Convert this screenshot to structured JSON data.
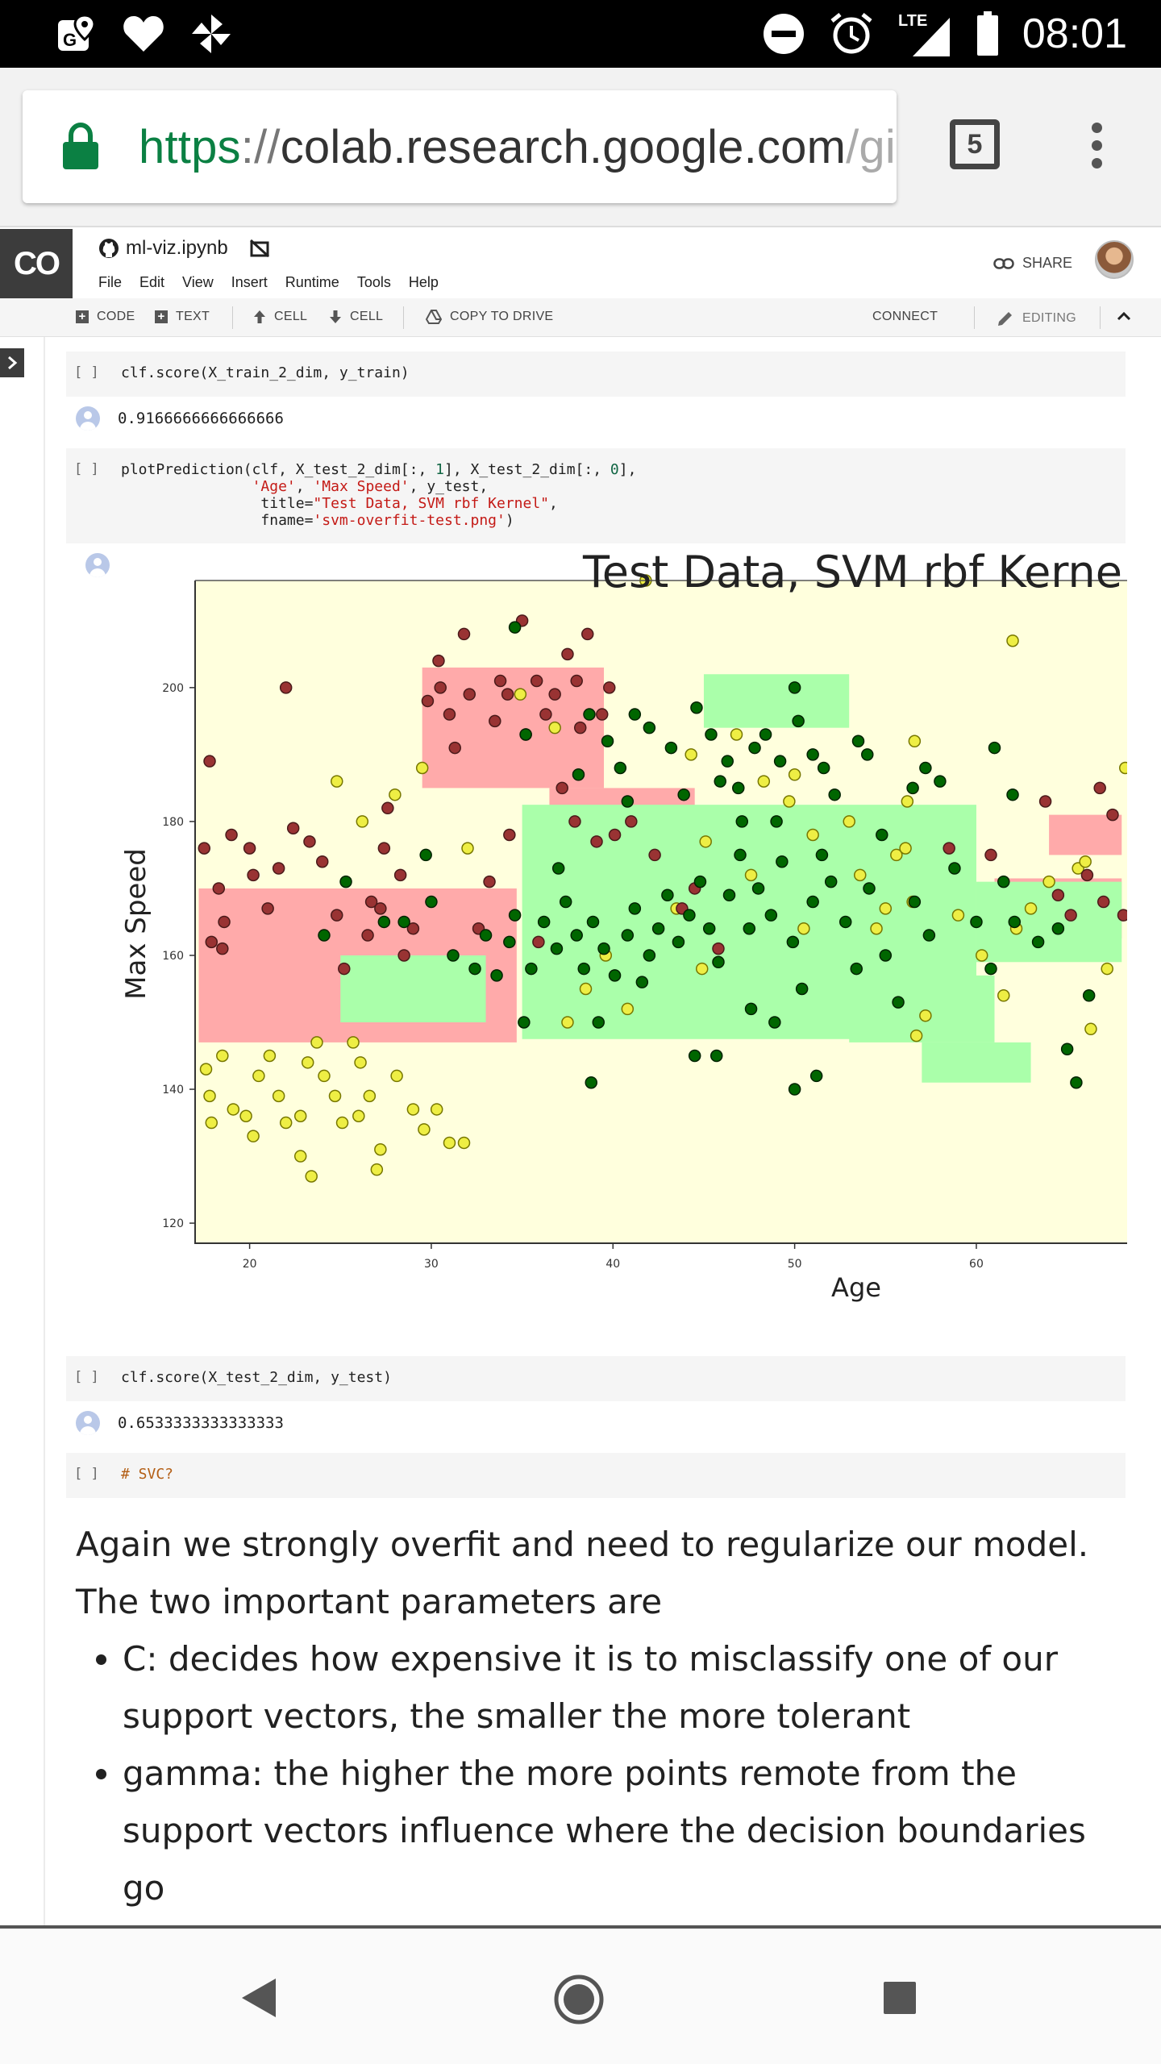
{
  "status_bar": {
    "time": "08:01",
    "network_label": "LTE",
    "left_icons": [
      "maps-notification-icon",
      "heart-icon",
      "pinwheel-icon"
    ],
    "right_icons": [
      "do-not-disturb-icon",
      "alarm-icon",
      "signal-icon",
      "battery-icon"
    ]
  },
  "browser": {
    "url_scheme": "https",
    "url_separator": "://",
    "url_host": "colab.research.google.com",
    "url_path": "/gi",
    "tab_count": "5"
  },
  "colab": {
    "logo": "CO",
    "notebook_name": "ml-viz.ipynb",
    "menu": [
      "File",
      "Edit",
      "View",
      "Insert",
      "Runtime",
      "Tools",
      "Help"
    ],
    "share_label": "SHARE",
    "toolbar": {
      "code": "CODE",
      "text": "TEXT",
      "cell_up": "CELL",
      "cell_down": "CELL",
      "copy_to_drive": "COPY TO DRIVE",
      "connect": "CONNECT",
      "editing": "EDITING"
    }
  },
  "cells": {
    "bracket": "[ ]",
    "cell1_code": "clf.score(X_train_2_dim, y_train)",
    "cell1_output": "0.9166666666666666",
    "cell2_line1_a": "plotPrediction(clf, X_test_2_dim[:, ",
    "cell2_line1_n1": "1",
    "cell2_line1_b": "], X_test_2_dim[:, ",
    "cell2_line1_n2": "0",
    "cell2_line1_c": "],",
    "cell2_indent": "               ",
    "cell2_line2_s1": "'Age'",
    "cell2_line2_sep": ", ",
    "cell2_line2_s2": "'Max Speed'",
    "cell2_line2_rest": ", y_test,",
    "cell2_line3_indent": "                ",
    "cell2_line3_kw": "title=",
    "cell2_line3_s": "\"Test Data, SVM rbf Kernel\"",
    "cell2_line3_end": ",",
    "cell2_line4_kw": "fname=",
    "cell2_line4_s": "'svm-overfit-test.png'",
    "cell2_line4_end": ")",
    "cell3_code": "clf.score(X_test_2_dim, y_test)",
    "cell3_output": "0.6533333333333333",
    "cell4_code": "# SVC?"
  },
  "chart_data": {
    "type": "scatter",
    "title": "Test Data, SVM rbf Kerne",
    "xlabel": "Age",
    "ylabel": "Max Speed",
    "xlim": [
      17,
      68.3
    ],
    "ylim": [
      117,
      216
    ],
    "xticks": [
      20,
      30,
      40,
      50,
      60
    ],
    "yticks": [
      120,
      140,
      160,
      180,
      200
    ],
    "colors": {
      "background": "#ffffdd",
      "region_red": "#ffaaaa",
      "region_green": "#aaffaa",
      "class_red": "#993333",
      "class_yellow": "#eeee44",
      "class_green": "#006600"
    },
    "regions_red": [
      [
        17.2,
        158.5,
        17.5,
        23
      ],
      [
        29.5,
        194,
        10,
        18
      ],
      [
        36.5,
        178,
        8,
        14
      ],
      [
        43,
        172,
        4,
        6
      ],
      [
        61,
        167,
        7,
        9
      ],
      [
        64,
        178,
        4,
        6
      ]
    ],
    "regions_green": [
      [
        35,
        165,
        25,
        35
      ],
      [
        25,
        155,
        8,
        10
      ],
      [
        45,
        198,
        8,
        8
      ],
      [
        53,
        152,
        8,
        10
      ],
      [
        57,
        144,
        6,
        6
      ],
      [
        60,
        165,
        8,
        12
      ]
    ],
    "points_red": [
      [
        17.8,
        189
      ],
      [
        17.5,
        176
      ],
      [
        18.3,
        170
      ],
      [
        18.6,
        165
      ],
      [
        17.9,
        162
      ],
      [
        18.5,
        161
      ],
      [
        19.0,
        178
      ],
      [
        20.2,
        172
      ],
      [
        21.0,
        167
      ],
      [
        21.6,
        173
      ],
      [
        22.0,
        200
      ],
      [
        22.4,
        179
      ],
      [
        23.3,
        177
      ],
      [
        24.0,
        174
      ],
      [
        24.8,
        166
      ],
      [
        25.2,
        158
      ],
      [
        26.5,
        163
      ],
      [
        26.7,
        168
      ],
      [
        27.6,
        182
      ],
      [
        27.4,
        176
      ],
      [
        28.5,
        160
      ],
      [
        29.0,
        164
      ],
      [
        29.8,
        198
      ],
      [
        30.5,
        200
      ],
      [
        30.4,
        204
      ],
      [
        31.0,
        196
      ],
      [
        31.3,
        191
      ],
      [
        32.1,
        199
      ],
      [
        33.5,
        195
      ],
      [
        33.8,
        201
      ],
      [
        34.2,
        199
      ],
      [
        35.2,
        193
      ],
      [
        35.8,
        201
      ],
      [
        36.3,
        196
      ],
      [
        36.8,
        199
      ],
      [
        37.5,
        205
      ],
      [
        38.0,
        201
      ],
      [
        38.2,
        194
      ],
      [
        38.6,
        208
      ],
      [
        39.4,
        196
      ],
      [
        39.8,
        200
      ],
      [
        31.8,
        208
      ],
      [
        35.0,
        210
      ],
      [
        37.2,
        185
      ],
      [
        37.9,
        180
      ],
      [
        39.1,
        177
      ],
      [
        40.1,
        178
      ],
      [
        41.0,
        180
      ],
      [
        42.3,
        175
      ],
      [
        43.8,
        167
      ],
      [
        44.5,
        170
      ],
      [
        45.8,
        161
      ],
      [
        34.3,
        178
      ],
      [
        33.2,
        171
      ],
      [
        32.6,
        164
      ],
      [
        35.9,
        162
      ],
      [
        64.5,
        169
      ],
      [
        65.2,
        166
      ],
      [
        66.1,
        172
      ],
      [
        67.0,
        168
      ],
      [
        68.1,
        166
      ],
      [
        66.8,
        185
      ],
      [
        67.5,
        181
      ],
      [
        60.8,
        175
      ],
      [
        58.5,
        176
      ],
      [
        63.8,
        183
      ],
      [
        27.2,
        167
      ],
      [
        28.3,
        172
      ],
      [
        20.0,
        176
      ]
    ],
    "points_yellow": [
      [
        17.6,
        143
      ],
      [
        17.8,
        139
      ],
      [
        17.9,
        135
      ],
      [
        18.5,
        145
      ],
      [
        19.1,
        137
      ],
      [
        19.8,
        136
      ],
      [
        20.5,
        142
      ],
      [
        20.2,
        133
      ],
      [
        21.1,
        145
      ],
      [
        21.6,
        139
      ],
      [
        22.0,
        135
      ],
      [
        22.8,
        136
      ],
      [
        23.2,
        144
      ],
      [
        23.7,
        147
      ],
      [
        24.1,
        142
      ],
      [
        24.7,
        139
      ],
      [
        25.1,
        135
      ],
      [
        25.7,
        147
      ],
      [
        26.1,
        144
      ],
      [
        26.6,
        139
      ],
      [
        26.0,
        136
      ],
      [
        27.2,
        131
      ],
      [
        27.0,
        128
      ],
      [
        28.1,
        142
      ],
      [
        29.0,
        137
      ],
      [
        29.6,
        134
      ],
      [
        30.3,
        137
      ],
      [
        31.0,
        132
      ],
      [
        31.8,
        132
      ],
      [
        22.8,
        130
      ],
      [
        23.4,
        127
      ],
      [
        24.8,
        186
      ],
      [
        26.2,
        180
      ],
      [
        28.0,
        184
      ],
      [
        29.5,
        188
      ],
      [
        32.0,
        176
      ],
      [
        37.5,
        150
      ],
      [
        40.8,
        152
      ],
      [
        38.5,
        155
      ],
      [
        39.6,
        160
      ],
      [
        43.5,
        167
      ],
      [
        44.9,
        158
      ],
      [
        46.8,
        193
      ],
      [
        48.3,
        186
      ],
      [
        49.7,
        183
      ],
      [
        50.0,
        187
      ],
      [
        51.0,
        178
      ],
      [
        53.0,
        180
      ],
      [
        53.6,
        172
      ],
      [
        54.5,
        164
      ],
      [
        55.0,
        167
      ],
      [
        55.6,
        175
      ],
      [
        56.2,
        183
      ],
      [
        56.6,
        192
      ],
      [
        56.1,
        176
      ],
      [
        56.5,
        168
      ],
      [
        57.2,
        151
      ],
      [
        56.7,
        148
      ],
      [
        59.0,
        166
      ],
      [
        60.3,
        160
      ],
      [
        61.5,
        154
      ],
      [
        62.2,
        164
      ],
      [
        63.0,
        167
      ],
      [
        64.0,
        171
      ],
      [
        65.6,
        173
      ],
      [
        66.3,
        149
      ],
      [
        67.2,
        158
      ],
      [
        68.2,
        188
      ],
      [
        62.0,
        207
      ],
      [
        66.0,
        174
      ],
      [
        41.8,
        216
      ],
      [
        34.9,
        199
      ],
      [
        36.8,
        194
      ],
      [
        44.3,
        190
      ],
      [
        45.1,
        177
      ],
      [
        47.6,
        172
      ],
      [
        50.5,
        164
      ]
    ],
    "points_green": [
      [
        34.6,
        209
      ],
      [
        35.2,
        193
      ],
      [
        38.1,
        187
      ],
      [
        38.7,
        196
      ],
      [
        39.7,
        192
      ],
      [
        40.4,
        188
      ],
      [
        40.8,
        183
      ],
      [
        41.2,
        196
      ],
      [
        42.0,
        194
      ],
      [
        43.2,
        191
      ],
      [
        43.9,
        184
      ],
      [
        44.6,
        197
      ],
      [
        45.4,
        193
      ],
      [
        45.9,
        186
      ],
      [
        46.3,
        189
      ],
      [
        46.9,
        185
      ],
      [
        47.1,
        180
      ],
      [
        47.8,
        191
      ],
      [
        48.4,
        193
      ],
      [
        49.0,
        180
      ],
      [
        49.2,
        189
      ],
      [
        50.0,
        200
      ],
      [
        50.2,
        195
      ],
      [
        51.0,
        190
      ],
      [
        51.6,
        188
      ],
      [
        52.2,
        184
      ],
      [
        53.5,
        192
      ],
      [
        54.0,
        190
      ],
      [
        54.8,
        178
      ],
      [
        56.5,
        185
      ],
      [
        57.2,
        188
      ],
      [
        58.0,
        186
      ],
      [
        61.0,
        191
      ],
      [
        62.0,
        184
      ],
      [
        61.5,
        171
      ],
      [
        28.5,
        165
      ],
      [
        30.0,
        168
      ],
      [
        31.2,
        160
      ],
      [
        32.4,
        158
      ],
      [
        33.0,
        163
      ],
      [
        33.6,
        157
      ],
      [
        34.3,
        162
      ],
      [
        34.6,
        166
      ],
      [
        35.1,
        150
      ],
      [
        35.5,
        158
      ],
      [
        36.2,
        165
      ],
      [
        36.9,
        161
      ],
      [
        37.4,
        168
      ],
      [
        38.0,
        163
      ],
      [
        38.4,
        158
      ],
      [
        38.9,
        165
      ],
      [
        39.5,
        161
      ],
      [
        40.1,
        157
      ],
      [
        40.8,
        163
      ],
      [
        41.2,
        167
      ],
      [
        41.6,
        156
      ],
      [
        42.0,
        160
      ],
      [
        42.5,
        164
      ],
      [
        43.0,
        169
      ],
      [
        43.6,
        162
      ],
      [
        44.2,
        166
      ],
      [
        44.8,
        171
      ],
      [
        45.3,
        164
      ],
      [
        45.8,
        159
      ],
      [
        46.4,
        169
      ],
      [
        47.0,
        175
      ],
      [
        47.5,
        164
      ],
      [
        48.0,
        170
      ],
      [
        48.7,
        166
      ],
      [
        49.3,
        174
      ],
      [
        49.9,
        162
      ],
      [
        50.4,
        155
      ],
      [
        51.0,
        168
      ],
      [
        51.5,
        175
      ],
      [
        52.0,
        171
      ],
      [
        52.8,
        165
      ],
      [
        53.4,
        158
      ],
      [
        54.1,
        170
      ],
      [
        55.0,
        160
      ],
      [
        55.7,
        153
      ],
      [
        56.6,
        168
      ],
      [
        57.4,
        163
      ],
      [
        58.8,
        173
      ],
      [
        60.0,
        165
      ],
      [
        60.8,
        158
      ],
      [
        62.1,
        165
      ],
      [
        63.4,
        162
      ],
      [
        64.5,
        164
      ],
      [
        65.0,
        146
      ],
      [
        66.2,
        154
      ],
      [
        65.5,
        141
      ],
      [
        44.5,
        145
      ],
      [
        45.7,
        145
      ],
      [
        47.6,
        152
      ],
      [
        48.9,
        150
      ],
      [
        50.0,
        140
      ],
      [
        51.2,
        142
      ],
      [
        38.8,
        141
      ],
      [
        39.2,
        150
      ],
      [
        29.7,
        175
      ],
      [
        37.0,
        173
      ],
      [
        25.3,
        171
      ],
      [
        24.1,
        163
      ],
      [
        27.4,
        165
      ]
    ]
  },
  "markdown": {
    "paragraph": "Again we strongly overfit and need to regularize our model. The two important parameters are",
    "bullets": [
      "C: decides how expensive it is to misclassify one of our support vectors, the smaller the more tolerant",
      "gamma: the higher the more points remote from the support vectors influence where the decision boundaries go"
    ]
  },
  "nav": {
    "icons": [
      "back-icon",
      "home-icon",
      "recents-icon"
    ]
  }
}
